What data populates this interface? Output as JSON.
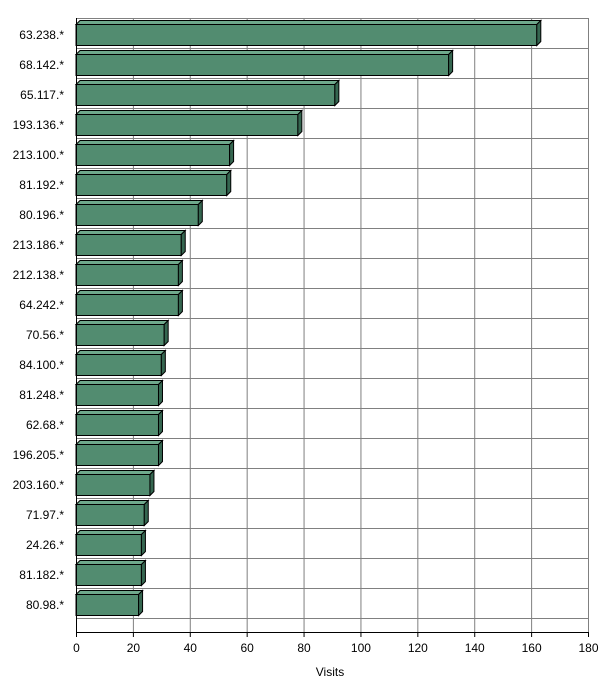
{
  "chart_data": {
    "type": "bar",
    "orientation": "horizontal",
    "title": "",
    "xlabel": "Visits",
    "ylabel": "",
    "categories": [
      "63.238.*",
      "68.142.*",
      "65.117.*",
      "193.136.*",
      "213.100.*",
      "81.192.*",
      "80.196.*",
      "213.186.*",
      "212.138.*",
      "64.242.*",
      "70.56.*",
      "84.100.*",
      "81.248.*",
      "62.68.*",
      "196.205.*",
      "203.160.*",
      "71.97.*",
      "24.26.*",
      "81.182.*",
      "80.98.*"
    ],
    "values": [
      162,
      131,
      91,
      78,
      54,
      53,
      43,
      37,
      36,
      36,
      31,
      30,
      29,
      29,
      29,
      26,
      24,
      23,
      23,
      22
    ],
    "xlim": [
      0,
      180
    ],
    "xticks": [
      "0",
      "20",
      "40",
      "60",
      "80",
      "100",
      "120",
      "140",
      "160",
      "180"
    ],
    "grid": true,
    "legend": "none",
    "colors": {
      "bar": "#528c70",
      "bar_top": "#6fa98c",
      "bar_side": "#356650",
      "grid": "#808080",
      "border": "#000000"
    }
  }
}
